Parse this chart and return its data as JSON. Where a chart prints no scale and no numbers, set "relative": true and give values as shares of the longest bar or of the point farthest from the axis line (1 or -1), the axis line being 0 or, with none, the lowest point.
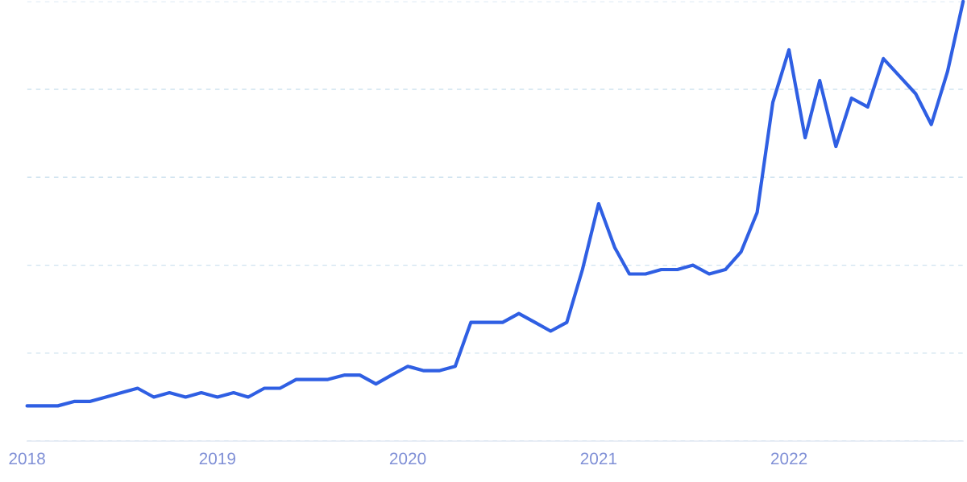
{
  "chart_data": {
    "type": "line",
    "relative": true,
    "grid": "y",
    "legend": false,
    "marker": "none",
    "line_style": "solid",
    "x": [
      "2018-01",
      "2018-02",
      "2018-03",
      "2018-04",
      "2018-05",
      "2018-06",
      "2018-07",
      "2018-08",
      "2018-09",
      "2018-10",
      "2018-11",
      "2018-12",
      "2019-01",
      "2019-02",
      "2019-03",
      "2019-04",
      "2019-05",
      "2019-06",
      "2019-07",
      "2019-08",
      "2019-09",
      "2019-10",
      "2019-11",
      "2019-12",
      "2020-01",
      "2020-02",
      "2020-03",
      "2020-04",
      "2020-05",
      "2020-06",
      "2020-07",
      "2020-08",
      "2020-09",
      "2020-10",
      "2020-11",
      "2020-12",
      "2021-01",
      "2021-02",
      "2021-03",
      "2021-04",
      "2021-05",
      "2021-06",
      "2021-07",
      "2021-08",
      "2021-09",
      "2021-10",
      "2021-11",
      "2021-12",
      "2022-01",
      "2022-02",
      "2022-03",
      "2022-04",
      "2022-05",
      "2022-06",
      "2022-07",
      "2022-08",
      "2022-09",
      "2022-10",
      "2022-11",
      "2022-12"
    ],
    "xlim": [
      "2018-01",
      "2022-12"
    ],
    "xticks": [
      {
        "value": "2018-01",
        "label": "2018"
      },
      {
        "value": "2019-01",
        "label": "2019"
      },
      {
        "value": "2020-01",
        "label": "2020"
      },
      {
        "value": "2021-01",
        "label": "2021"
      },
      {
        "value": "2022-01",
        "label": "2022"
      }
    ],
    "series": [
      {
        "color": "#2f5fe3",
        "values": [
          0.08,
          0.08,
          0.08,
          0.09,
          0.09,
          0.1,
          0.11,
          0.12,
          0.1,
          0.11,
          0.1,
          0.11,
          0.1,
          0.11,
          0.1,
          0.12,
          0.12,
          0.14,
          0.14,
          0.14,
          0.15,
          0.15,
          0.13,
          0.15,
          0.17,
          0.16,
          0.16,
          0.17,
          0.27,
          0.27,
          0.27,
          0.29,
          0.27,
          0.25,
          0.27,
          0.39,
          0.54,
          0.44,
          0.38,
          0.38,
          0.39,
          0.39,
          0.4,
          0.38,
          0.39,
          0.43,
          0.52,
          0.77,
          0.89,
          0.69,
          0.82,
          0.67,
          0.78,
          0.76,
          0.87,
          0.83,
          0.79,
          0.72,
          0.84,
          1
        ]
      }
    ]
  }
}
